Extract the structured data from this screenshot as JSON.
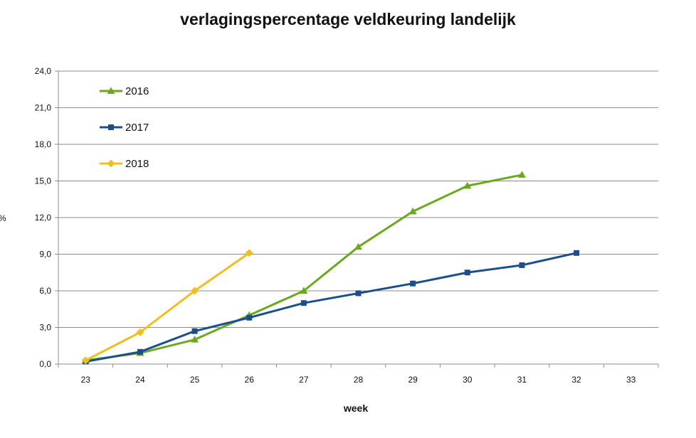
{
  "chart_data": {
    "type": "line",
    "title": "verlagingspercentage veldkeuring landelijk",
    "xlabel": "week",
    "ylabel": "%",
    "categories": [
      "23",
      "24",
      "25",
      "26",
      "27",
      "28",
      "29",
      "30",
      "31",
      "32",
      "33"
    ],
    "ylim": [
      0,
      24
    ],
    "yticks": [
      "0,0",
      "3,0",
      "6,0",
      "9,0",
      "12,0",
      "15,0",
      "18,0",
      "21,0",
      "24,0"
    ],
    "grid": true,
    "legend_position": "top-left",
    "series": [
      {
        "name": "2016",
        "color": "#6aa81e",
        "marker": "triangle",
        "values": [
          0.3,
          0.9,
          2.0,
          4.0,
          6.0,
          9.6,
          12.5,
          14.6,
          15.5,
          null,
          null
        ]
      },
      {
        "name": "2017",
        "color": "#1b4f8c",
        "marker": "square",
        "values": [
          0.2,
          1.0,
          2.7,
          3.8,
          5.0,
          5.8,
          6.6,
          7.5,
          8.1,
          9.1,
          null
        ]
      },
      {
        "name": "2018",
        "color": "#f0be1e",
        "marker": "diamond",
        "values": [
          0.3,
          2.6,
          6.0,
          9.1,
          null,
          null,
          null,
          null,
          null,
          null,
          null
        ]
      }
    ]
  }
}
